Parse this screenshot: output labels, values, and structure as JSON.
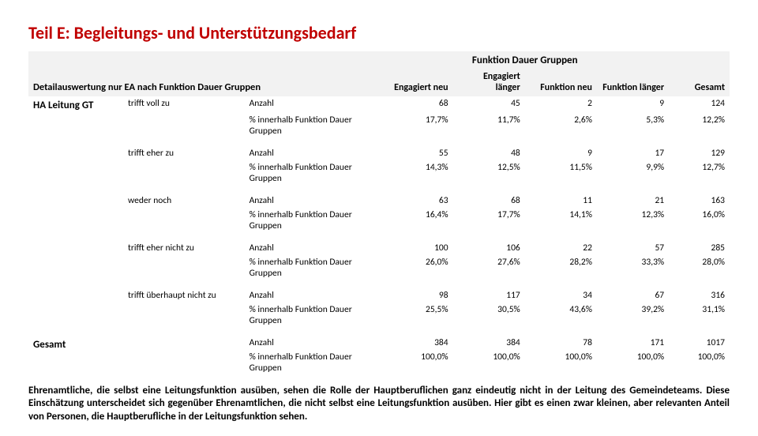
{
  "title": "Teil E: Begleitungs- und Unterstützungsbedarf",
  "crosstab_title": "Detailauswertung nur EA nach Funktion Dauer Gruppen",
  "group_header": "Funktion Dauer Gruppen",
  "columns": {
    "c1": "Engagiert neu",
    "c2": "Engagiert länger",
    "c3": "Funktion neu",
    "c4": "Funktion länger",
    "total": "Gesamt"
  },
  "row_var": "HA Leitung GT",
  "measure_count": "Anzahl",
  "measure_pct": "% innerhalb Funktion Dauer Gruppen",
  "total_label": "Gesamt",
  "categories": [
    {
      "label": "trifft voll zu",
      "count": [
        "68",
        "45",
        "2",
        "9",
        "124"
      ],
      "pct": [
        "17,7%",
        "11,7%",
        "2,6%",
        "5,3%",
        "12,2%"
      ]
    },
    {
      "label": "trifft eher zu",
      "count": [
        "55",
        "48",
        "9",
        "17",
        "129"
      ],
      "pct": [
        "14,3%",
        "12,5%",
        "11,5%",
        "9,9%",
        "12,7%"
      ]
    },
    {
      "label": "weder noch",
      "count": [
        "63",
        "68",
        "11",
        "21",
        "163"
      ],
      "pct": [
        "16,4%",
        "17,7%",
        "14,1%",
        "12,3%",
        "16,0%"
      ]
    },
    {
      "label": "trifft eher nicht zu",
      "count": [
        "100",
        "106",
        "22",
        "57",
        "285"
      ],
      "pct": [
        "26,0%",
        "27,6%",
        "28,2%",
        "33,3%",
        "28,0%"
      ]
    },
    {
      "label": "trifft überhaupt nicht zu",
      "count": [
        "98",
        "117",
        "34",
        "67",
        "316"
      ],
      "pct": [
        "25,5%",
        "30,5%",
        "43,6%",
        "39,2%",
        "31,1%"
      ]
    }
  ],
  "totals": {
    "count": [
      "384",
      "384",
      "78",
      "171",
      "1017"
    ],
    "pct": [
      "100,0%",
      "100,0%",
      "100,0%",
      "100,0%",
      "100,0%"
    ]
  },
  "paragraph": "Ehrenamtliche, die selbst eine Leitungsfunktion ausüben, sehen die Rolle der Hauptberuflichen ganz eindeutig nicht in der Leitung des Gemeindeteams. Diese Einschätzung unterscheidet sich gegenüber Ehrenamtlichen, die nicht selbst eine Leitungsfunktion ausüben. Hier gibt es einen zwar kleinen, aber relevanten Anteil von Personen, die Hauptberufliche in der Leitungsfunktion sehen."
}
